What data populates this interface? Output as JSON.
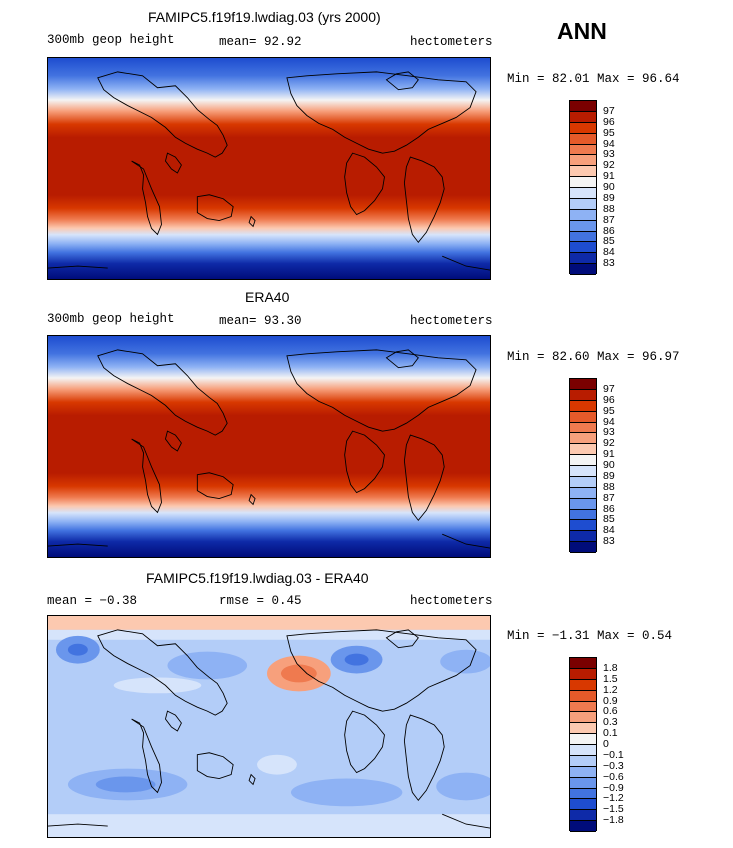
{
  "season": "ANN",
  "panels": [
    {
      "title": "FAMIPC5.f19f19.lwdiag.03 (yrs 2000)",
      "left_label": "300mb geop height",
      "center_label": "mean=  92.92",
      "right_label": "hectometers",
      "minmax": "Min =  82.01 Max =  96.64",
      "colorbar": {
        "labels": [
          "97",
          "96",
          "95",
          "94",
          "93",
          "92",
          "91",
          "90",
          "89",
          "88",
          "87",
          "86",
          "85",
          "84",
          "83"
        ],
        "colors": [
          "#7a0000",
          "#b81c00",
          "#d83800",
          "#e55a2a",
          "#ef7a4f",
          "#f7a07c",
          "#fcc9b0",
          "#f4f4f4",
          "#d6e4fb",
          "#b3cdf8",
          "#8eb2f4",
          "#6a96ec",
          "#4273e0",
          "#1e4dd0",
          "#0e2aa8",
          "#000c7a"
        ]
      }
    },
    {
      "title": "ERA40",
      "left_label": "300mb geop height",
      "center_label": "mean=  93.30",
      "right_label": "hectometers",
      "minmax": "Min =  82.60 Max =  96.97",
      "colorbar": {
        "labels": [
          "97",
          "96",
          "95",
          "94",
          "93",
          "92",
          "91",
          "90",
          "89",
          "88",
          "87",
          "86",
          "85",
          "84",
          "83"
        ],
        "colors": [
          "#7a0000",
          "#b81c00",
          "#d83800",
          "#e55a2a",
          "#ef7a4f",
          "#f7a07c",
          "#fcc9b0",
          "#f4f4f4",
          "#d6e4fb",
          "#b3cdf8",
          "#8eb2f4",
          "#6a96ec",
          "#4273e0",
          "#1e4dd0",
          "#0e2aa8",
          "#000c7a"
        ]
      }
    },
    {
      "title": "FAMIPC5.f19f19.lwdiag.03 - ERA40",
      "left_label": "mean =  −0.38",
      "center_label": "rmse =   0.45",
      "right_label": "hectometers",
      "minmax": "Min =  −1.31 Max =   0.54",
      "colorbar": {
        "labels": [
          "1.8",
          "1.5",
          "1.2",
          "0.9",
          "0.6",
          "0.3",
          "0.1",
          "0",
          "−0.1",
          "−0.3",
          "−0.6",
          "−0.9",
          "−1.2",
          "−1.5",
          "−1.8"
        ],
        "colors": [
          "#7a0000",
          "#b81c00",
          "#d83800",
          "#e55a2a",
          "#ef7a4f",
          "#f7a07c",
          "#fcc9b0",
          "#f4f4f4",
          "#d6e4fb",
          "#b3cdf8",
          "#8eb2f4",
          "#6a96ec",
          "#4273e0",
          "#1e4dd0",
          "#0e2aa8",
          "#000c7a"
        ]
      }
    }
  ]
}
